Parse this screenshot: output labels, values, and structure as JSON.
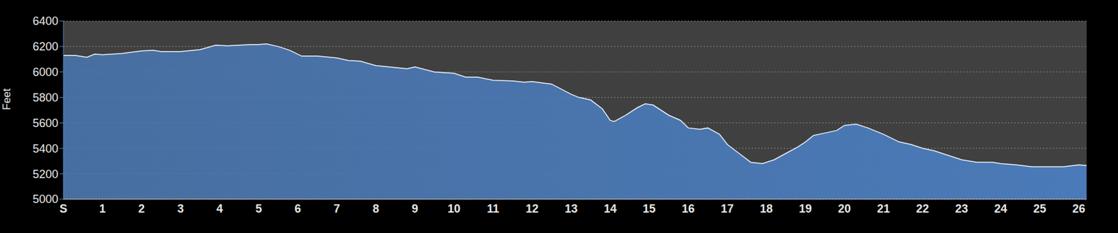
{
  "chart_data": {
    "type": "area",
    "ylabel": "Feet",
    "color": "#4a7ab8",
    "grid": true,
    "x": [
      0,
      0.3,
      0.5,
      0.6,
      0.8,
      1.0,
      1.5,
      2.0,
      2.3,
      2.5,
      3.0,
      3.5,
      3.9,
      4.2,
      4.5,
      4.8,
      5.0,
      5.2,
      5.5,
      5.8,
      6.1,
      6.5,
      7.0,
      7.3,
      7.6,
      8.0,
      8.5,
      8.8,
      9.0,
      9.5,
      10.0,
      10.3,
      10.6,
      11.0,
      11.5,
      11.8,
      12.0,
      12.5,
      13.0,
      13.2,
      13.5,
      13.8,
      14.0,
      14.1,
      14.4,
      14.7,
      14.9,
      15.1,
      15.3,
      15.5,
      15.8,
      16.0,
      16.3,
      16.5,
      16.8,
      17.0,
      17.3,
      17.6,
      17.9,
      18.2,
      18.5,
      18.8,
      19.0,
      19.2,
      19.5,
      19.8,
      20.0,
      20.3,
      20.6,
      21.0,
      21.4,
      21.7,
      22.0,
      22.3,
      22.7,
      23.0,
      23.4,
      23.8,
      24.0,
      24.4,
      24.8,
      25.2,
      25.6,
      26.0,
      26.2
    ],
    "values": [
      6130,
      6130,
      6120,
      6115,
      6140,
      6135,
      6145,
      6165,
      6170,
      6160,
      6160,
      6175,
      6210,
      6205,
      6210,
      6215,
      6215,
      6220,
      6200,
      6170,
      6125,
      6125,
      6110,
      6090,
      6085,
      6050,
      6035,
      6025,
      6040,
      6000,
      5990,
      5960,
      5960,
      5935,
      5930,
      5920,
      5925,
      5905,
      5825,
      5800,
      5780,
      5710,
      5620,
      5610,
      5660,
      5720,
      5750,
      5740,
      5700,
      5660,
      5620,
      5560,
      5550,
      5560,
      5510,
      5430,
      5360,
      5290,
      5280,
      5310,
      5360,
      5410,
      5450,
      5500,
      5520,
      5540,
      5580,
      5590,
      5560,
      5510,
      5450,
      5430,
      5400,
      5380,
      5340,
      5310,
      5290,
      5290,
      5280,
      5270,
      5255,
      5255,
      5255,
      5270,
      5265
    ],
    "xlim": [
      0,
      26.2
    ],
    "xticks": [
      {
        "value": 0,
        "label": "S"
      },
      1,
      2,
      3,
      4,
      5,
      6,
      7,
      8,
      9,
      10,
      11,
      12,
      13,
      14,
      15,
      16,
      17,
      18,
      19,
      20,
      21,
      22,
      23,
      24,
      25,
      26
    ],
    "ylim": [
      5000,
      6400
    ],
    "yticks": [
      5000,
      5200,
      5400,
      5600,
      5800,
      6000,
      6200,
      6400
    ]
  }
}
